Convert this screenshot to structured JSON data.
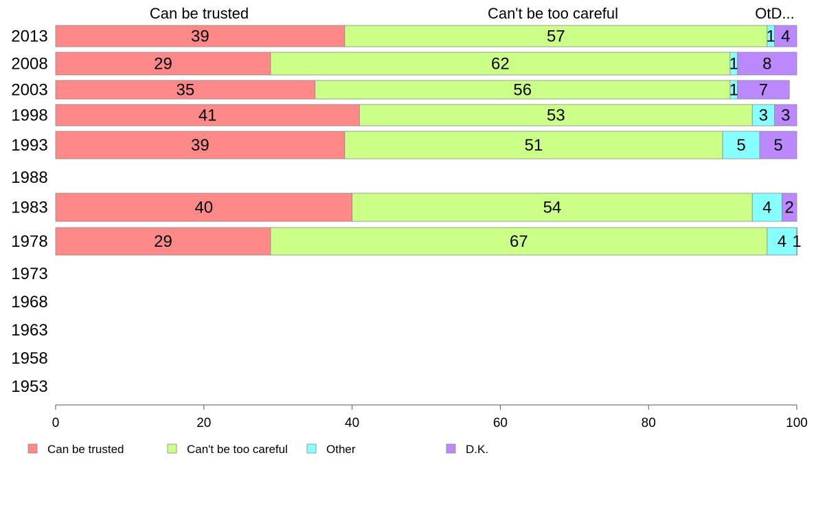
{
  "chart_data": {
    "type": "bar",
    "orientation": "horizontal",
    "stacked": true,
    "column_headers": [
      "Can be trusted",
      "Can't be too careful",
      "OtD..."
    ],
    "categories": [
      "2013",
      "2008",
      "2003",
      "1998",
      "1993",
      "1988",
      "1983",
      "1978",
      "1973",
      "1968",
      "1963",
      "1958",
      "1953"
    ],
    "series": [
      {
        "name": "Can be trusted",
        "color": "#ff8888",
        "values": [
          39,
          29,
          35,
          41,
          39,
          null,
          40,
          29,
          null,
          null,
          null,
          null,
          null
        ],
        "labels": [
          "39",
          "29",
          "35",
          "41",
          "39",
          "",
          "40",
          "29",
          "",
          "",
          "",
          "",
          ""
        ]
      },
      {
        "name": "Can't be too careful",
        "color": "#ccff88",
        "values": [
          57,
          62,
          56,
          53,
          51,
          null,
          54,
          67,
          null,
          null,
          null,
          null,
          null
        ],
        "labels": [
          "57",
          "62",
          "56",
          "53",
          "51",
          "",
          "54",
          "67",
          "",
          "",
          "",
          "",
          ""
        ]
      },
      {
        "name": "Other",
        "color": "#88ffff",
        "values": [
          1,
          1,
          1,
          3,
          5,
          null,
          4,
          4,
          null,
          null,
          null,
          null,
          null
        ],
        "labels": [
          "1",
          "1",
          "1",
          "3",
          "5",
          "",
          "4",
          "4",
          "",
          "",
          "",
          "",
          ""
        ]
      },
      {
        "name": "D.K.",
        "color": "#bb88ff",
        "values": [
          4,
          8,
          7,
          3,
          5,
          null,
          2,
          1,
          null,
          null,
          null,
          null,
          null
        ],
        "labels": [
          "4",
          "8",
          "7",
          "3",
          "5",
          "",
          "2",
          "1",
          "",
          "",
          "",
          "",
          ""
        ]
      }
    ],
    "xlim": [
      0,
      100
    ],
    "xticks": [
      "0",
      "20",
      "40",
      "60",
      "80",
      "100"
    ],
    "grid": false,
    "legend": {
      "position": "bottom-left",
      "entries": [
        "Can be trusted",
        "Can't be too careful",
        "Other",
        "D.K."
      ]
    }
  }
}
